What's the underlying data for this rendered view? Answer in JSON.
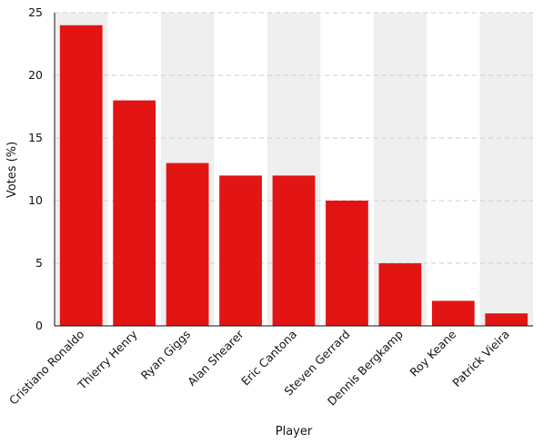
{
  "chart_data": {
    "type": "bar",
    "title": "",
    "xlabel": "Player",
    "ylabel": "Votes (%)",
    "categories": [
      "Cristiano Ronaldo",
      "Thierry Henry",
      "Ryan Giggs",
      "Alan Shearer",
      "Eric Cantona",
      "Steven Gerrard",
      "Dennis Bergkamp",
      "Roy Keane",
      "Patrick Vieira"
    ],
    "values": [
      24,
      18,
      13,
      12,
      12,
      10,
      5,
      2,
      1
    ],
    "ylim": [
      0,
      25
    ],
    "yticks": [
      "0",
      "5",
      "10",
      "15",
      "20",
      "25"
    ],
    "grid": "horizontal dashed",
    "legend": "none"
  },
  "colors": {
    "bar": "#e31414",
    "band": "#efefef",
    "grid": "#cccccc",
    "axis": "#111111"
  }
}
